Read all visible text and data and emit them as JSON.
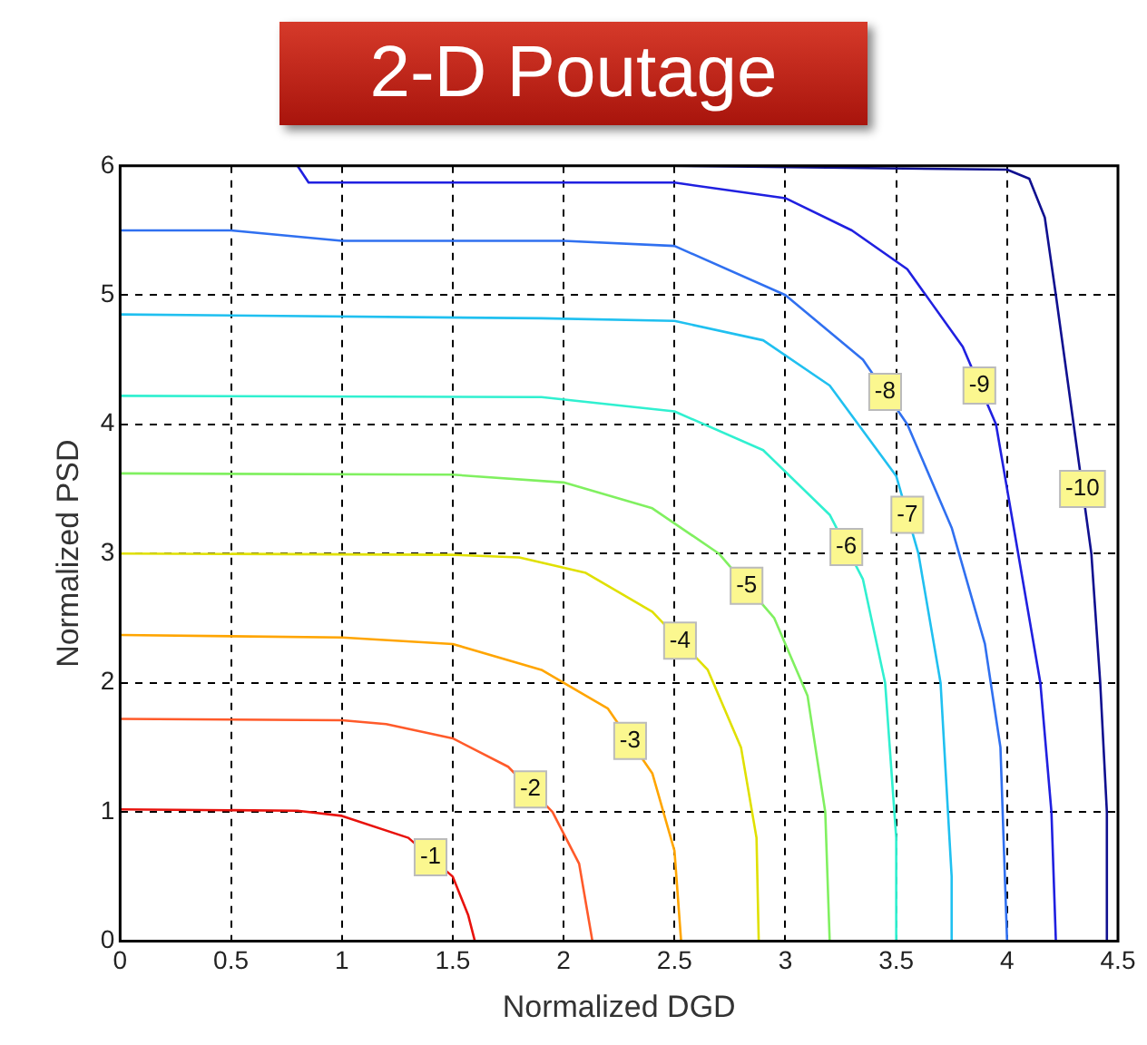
{
  "chart_data": {
    "type": "line",
    "title": "2-D Poutage",
    "xlabel": "Normalized DGD",
    "ylabel": "Normalized PSD",
    "xlim": [
      0,
      4.5
    ],
    "ylim": [
      0,
      6
    ],
    "xticks": [
      0,
      0.5,
      1,
      1.5,
      2,
      2.5,
      3,
      3.5,
      4,
      4.5
    ],
    "yticks": [
      0,
      1,
      2,
      3,
      4,
      5,
      6
    ],
    "grid": true,
    "legend": false,
    "marker": "none",
    "line_style": "solid",
    "series": [
      {
        "name": "-1",
        "color": "#e8120c",
        "x": [
          0,
          0.8,
          1,
          1.3,
          1.5,
          1.57,
          1.6
        ],
        "values": [
          1.02,
          1.01,
          0.97,
          0.8,
          0.5,
          0.2,
          0
        ]
      },
      {
        "name": "-2",
        "color": "#ff5a2a",
        "x": [
          0,
          1,
          1.2,
          1.5,
          1.75,
          1.95,
          2.07,
          2.13
        ],
        "values": [
          1.72,
          1.71,
          1.68,
          1.57,
          1.35,
          1.0,
          0.6,
          0
        ]
      },
      {
        "name": "-3",
        "color": "#ffa500",
        "x": [
          0,
          1,
          1.5,
          1.9,
          2.2,
          2.4,
          2.5,
          2.53
        ],
        "values": [
          2.37,
          2.35,
          2.3,
          2.1,
          1.8,
          1.3,
          0.7,
          0
        ]
      },
      {
        "name": "-4",
        "color": "#e0e000",
        "x": [
          0,
          1.5,
          1.8,
          2.1,
          2.4,
          2.65,
          2.8,
          2.87,
          2.88
        ],
        "values": [
          3.0,
          2.99,
          2.97,
          2.85,
          2.55,
          2.1,
          1.5,
          0.8,
          0
        ]
      },
      {
        "name": "-5",
        "color": "#80f060",
        "x": [
          0,
          1.5,
          2,
          2.4,
          2.7,
          2.95,
          3.1,
          3.18,
          3.2
        ],
        "values": [
          3.62,
          3.61,
          3.55,
          3.35,
          3.0,
          2.5,
          1.9,
          1.0,
          0
        ]
      },
      {
        "name": "-6",
        "color": "#30f0d0",
        "x": [
          0,
          1.9,
          2.5,
          2.9,
          3.2,
          3.35,
          3.45,
          3.5,
          3.5
        ],
        "values": [
          4.22,
          4.21,
          4.1,
          3.8,
          3.3,
          2.8,
          2.0,
          0.8,
          0
        ]
      },
      {
        "name": "-7",
        "color": "#20c0f0",
        "x": [
          0,
          1.9,
          2.5,
          2.9,
          3.2,
          3.5,
          3.6,
          3.7,
          3.75,
          3.75
        ],
        "values": [
          4.85,
          4.82,
          4.8,
          4.65,
          4.3,
          3.6,
          3.0,
          2.0,
          0.5,
          0
        ]
      },
      {
        "name": "-8",
        "color": "#3070f0",
        "x": [
          0,
          0.5,
          1,
          2,
          2.5,
          3.0,
          3.35,
          3.55,
          3.75,
          3.9,
          3.97,
          4.0
        ],
        "values": [
          5.5,
          5.5,
          5.42,
          5.42,
          5.38,
          5.0,
          4.5,
          4.0,
          3.2,
          2.3,
          1.5,
          0
        ]
      },
      {
        "name": "-9",
        "color": "#2020e0",
        "x": [
          0.8,
          0.85,
          2.5,
          3.0,
          3.3,
          3.55,
          3.8,
          3.95,
          4.05,
          4.15,
          4.2,
          4.22
        ],
        "values": [
          6.0,
          5.87,
          5.87,
          5.75,
          5.5,
          5.2,
          4.6,
          4.0,
          3.0,
          2.0,
          1.0,
          0
        ]
      },
      {
        "name": "-10",
        "color": "#101090",
        "x": [
          2.5,
          4.0,
          4.1,
          4.17,
          4.22,
          4.3,
          4.38,
          4.42,
          4.45,
          4.45
        ],
        "values": [
          6.0,
          5.97,
          5.9,
          5.6,
          5.0,
          4.0,
          3.0,
          2.0,
          1.0,
          0
        ]
      }
    ]
  }
}
